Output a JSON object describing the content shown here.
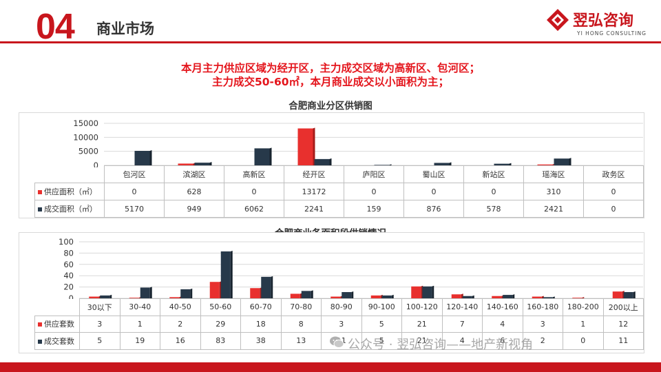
{
  "header": {
    "section_number": "04",
    "section_title": "商业市场",
    "logo_cn": "翌弘咨询",
    "logo_en": "YI HONG CONSULTING"
  },
  "headline": {
    "line1": "本月主力供应区域为经开区，主力成交区域为高新区、包河区；",
    "line2": "主力成交50-60㎡，本月商业成交以小面积为主；"
  },
  "watermark": "公众号 · 翌弘咨询——地产新视角",
  "colors": {
    "supply": "#e8302e",
    "deal": "#27394a",
    "accent": "#c8161d"
  },
  "chart_data": [
    {
      "type": "bar",
      "title": "合肥商业分区供销图",
      "categories": [
        "包河区",
        "滨湖区",
        "高新区",
        "经开区",
        "庐阳区",
        "蜀山区",
        "新站区",
        "瑶海区",
        "政务区"
      ],
      "series": [
        {
          "name": "供应面积（㎡）",
          "values": [
            0,
            628,
            0,
            13172,
            0,
            0,
            0,
            310,
            0
          ]
        },
        {
          "name": "成交面积（㎡）",
          "values": [
            5170,
            949,
            6062,
            2241,
            159,
            876,
            578,
            2421,
            0
          ]
        }
      ],
      "yticks": [
        "15000",
        "10000",
        "5000",
        "0"
      ],
      "ylim": [
        0,
        15000
      ],
      "legend": "data-table"
    },
    {
      "type": "bar",
      "title": "合肥商业各面积段供销情况",
      "categories": [
        "30以下",
        "30-40",
        "40-50",
        "50-60",
        "60-70",
        "70-80",
        "80-90",
        "90-100",
        "100-120",
        "120-140",
        "140-160",
        "160-180",
        "180-200",
        "200以上"
      ],
      "series": [
        {
          "name": "供应套数",
          "values": [
            3,
            1,
            2,
            29,
            18,
            8,
            3,
            5,
            21,
            7,
            4,
            3,
            1,
            12
          ]
        },
        {
          "name": "成交套数",
          "values": [
            5,
            19,
            16,
            83,
            38,
            13,
            11,
            5,
            21,
            4,
            6,
            2,
            0,
            11
          ]
        }
      ],
      "yticks": [
        "100",
        "80",
        "60",
        "40",
        "20",
        "0"
      ],
      "ylim": [
        0,
        100
      ],
      "legend": "data-table"
    }
  ]
}
